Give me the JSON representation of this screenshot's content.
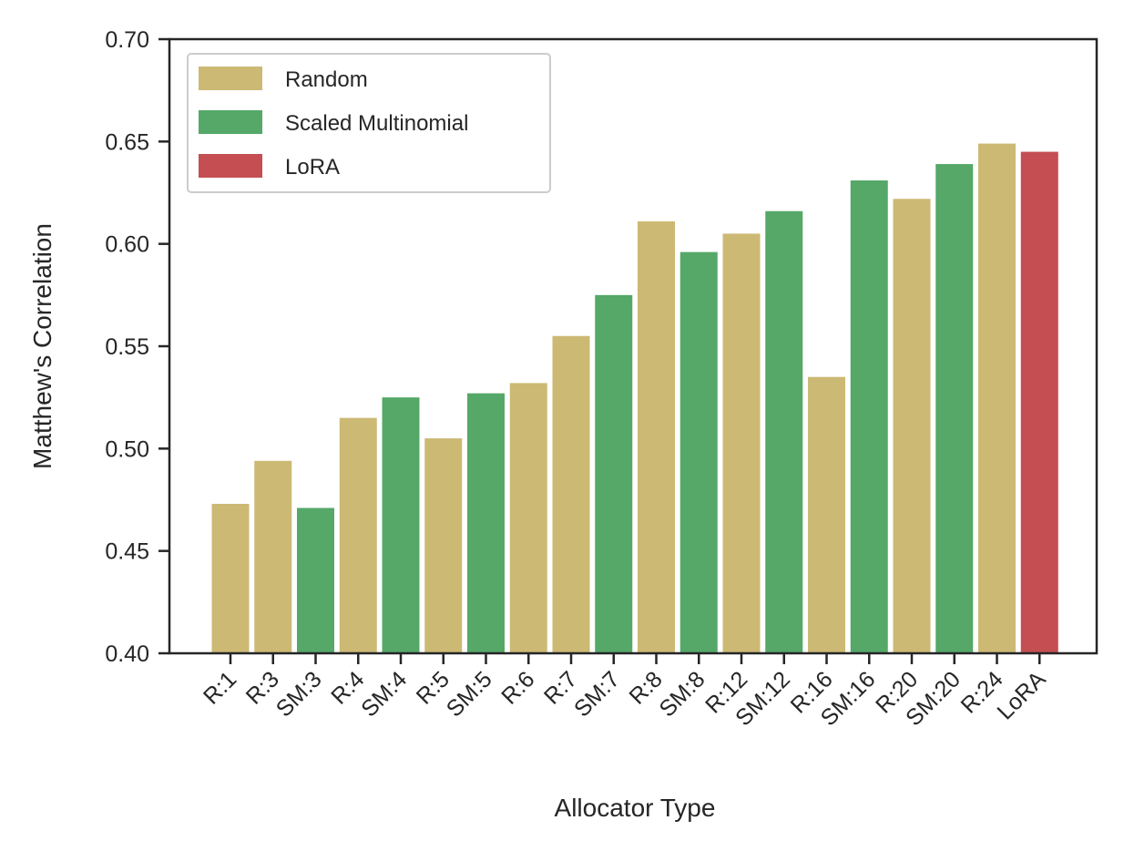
{
  "chart_data": {
    "type": "bar",
    "title": "",
    "xlabel": "Allocator Type",
    "ylabel": "Matthew's Correlation",
    "ylim": [
      0.4,
      0.7
    ],
    "yticks": [
      "0.40",
      "0.45",
      "0.50",
      "0.55",
      "0.60",
      "0.65",
      "0.70"
    ],
    "grid": false,
    "legend": {
      "placement": "top-left",
      "entries": [
        {
          "name": "Random",
          "color": "#CCB974"
        },
        {
          "name": "Scaled Multinomial",
          "color": "#55A868"
        },
        {
          "name": "LoRA",
          "color": "#C44E52"
        }
      ]
    },
    "categories": [
      "R:1",
      "R:3",
      "SM:3",
      "R:4",
      "SM:4",
      "R:5",
      "SM:5",
      "R:6",
      "R:7",
      "SM:7",
      "R:8",
      "SM:8",
      "R:12",
      "SM:12",
      "R:16",
      "SM:16",
      "R:20",
      "SM:20",
      "R:24",
      "LoRA"
    ],
    "values": [
      0.473,
      0.494,
      0.471,
      0.515,
      0.525,
      0.505,
      0.527,
      0.532,
      0.555,
      0.575,
      0.611,
      0.596,
      0.605,
      0.616,
      0.535,
      0.631,
      0.622,
      0.639,
      0.649,
      0.645
    ],
    "groups": [
      "Random",
      "Random",
      "Scaled Multinomial",
      "Random",
      "Scaled Multinomial",
      "Random",
      "Scaled Multinomial",
      "Random",
      "Random",
      "Scaled Multinomial",
      "Random",
      "Scaled Multinomial",
      "Random",
      "Scaled Multinomial",
      "Random",
      "Scaled Multinomial",
      "Random",
      "Scaled Multinomial",
      "Random",
      "LoRA"
    ]
  }
}
